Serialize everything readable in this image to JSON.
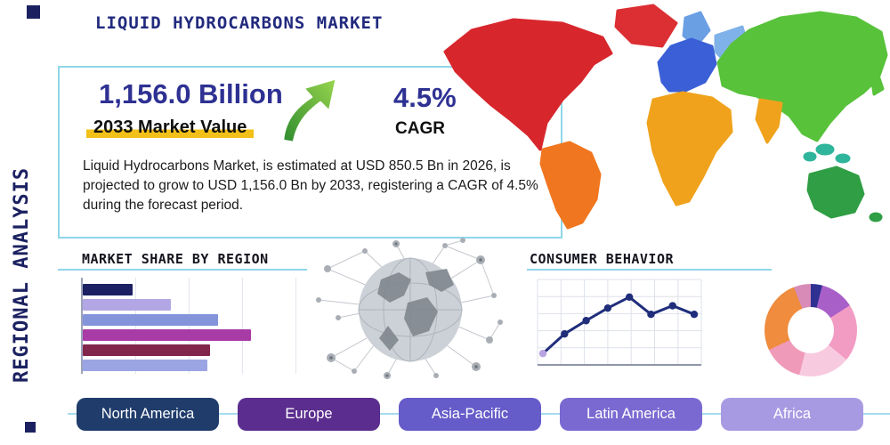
{
  "page": {
    "title": "LIQUID HYDROCARBONS MARKET",
    "side_label": "REGIONAL ANALYSIS"
  },
  "stats": {
    "market_value": "1,156.0 Billion",
    "market_value_label": "2033 Market Value",
    "cagr_value": "4.5%",
    "cagr_label": "CAGR",
    "description": "Liquid Hydrocarbons Market, is estimated at USD 850.5 Bn in 2026, is projected to grow to USD 1,156.0 Bn by 2033, registering a CAGR of 4.5% during the forecast period."
  },
  "sections": {
    "market_share_heading": "MARKET SHARE BY REGION",
    "consumer_behavior_heading": "CONSUMER BEHAVIOR"
  },
  "region_buttons": [
    {
      "label": "North America",
      "color": "#1f3c6b"
    },
    {
      "label": "Europe",
      "color": "#5a2d8e"
    },
    {
      "label": "Asia-Pacific",
      "color": "#655bc9"
    },
    {
      "label": "Latin America",
      "color": "#7a69d1"
    },
    {
      "label": "Africa",
      "color": "#a89ae2"
    }
  ],
  "chart_data": [
    {
      "type": "bar",
      "title": "MARKET SHARE BY REGION",
      "orientation": "horizontal",
      "values": [
        23,
        41,
        63,
        78,
        59,
        58
      ],
      "colors": [
        "#1b2162",
        "#b2a7e4",
        "#8494da",
        "#a83ba6",
        "#83264b",
        "#9ba5e4"
      ],
      "xlim": [
        0,
        100
      ],
      "grid": true,
      "note": "values estimated from bar lengths; no axis labels shown"
    },
    {
      "type": "line",
      "title": "CONSUMER BEHAVIOR",
      "x": [
        1,
        2,
        3,
        4,
        5,
        6,
        7,
        8
      ],
      "values": [
        10,
        35,
        52,
        68,
        82,
        60,
        71,
        60
      ],
      "ylim": [
        0,
        100
      ],
      "line_color": "#1f2d7a",
      "first_marker_color": "#b8a4e0",
      "grid": true,
      "note": "values estimated; no axis labels shown"
    },
    {
      "type": "pie",
      "donut": true,
      "segments": [
        {
          "color": "#2e3192",
          "value": 4
        },
        {
          "color": "#a95fc8",
          "value": 12
        },
        {
          "color": "#f29cc4",
          "value": 20
        },
        {
          "color": "#f8cadf",
          "value": 18
        },
        {
          "color": "#ef9ab8",
          "value": 14
        },
        {
          "color": "#ef8c3e",
          "value": 26
        },
        {
          "color": "#d98bb8",
          "value": 6
        }
      ],
      "note": "slice sizes estimated; no labels shown"
    }
  ],
  "map_regions": {
    "north-america": "#d7262c",
    "greenland": "#dc2f33",
    "south-america": "#f0761f",
    "europe": "#3a5fd6",
    "scandinavia": "#6b9fe4",
    "eastern-europe": "#7fb2e8",
    "africa": "#f0a21c",
    "india": "#f0a21c",
    "asia": "#58c23a",
    "southeast-asia-islands": "#2fb59b",
    "australia": "#2f9e44",
    "new-zealand": "#2f9e44",
    "japan": "#58c23a"
  },
  "accent": {
    "highlight_yellow": "#f2c018",
    "box_border": "#8fd6e9",
    "heading_rule": "#8fd6e9",
    "arrow_green": "#4caf50",
    "bottom_rule": "#a6dcee",
    "navy": "#2e3192"
  }
}
